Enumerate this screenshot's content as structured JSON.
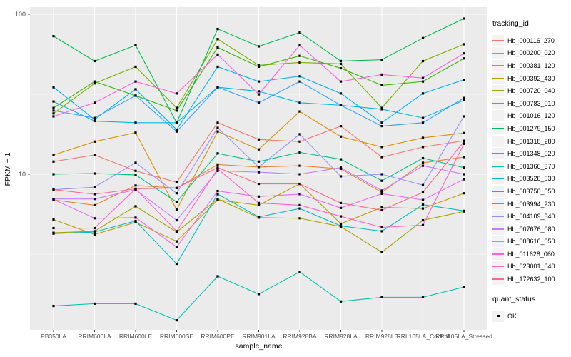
{
  "figure": {
    "background": "#FFFFFF",
    "panel_background": "#EBEBEB",
    "grid_color": "#FFFFFF",
    "tick_color": "#333333",
    "tick_label_color": "#4D4D4D",
    "title_color": "#000000",
    "marker_color": "#000000"
  },
  "chart_data": {
    "type": "line",
    "title": "",
    "xlabel": "sample_name",
    "ylabel": "FPKM + 1",
    "y_scale": "log10",
    "ylim": [
      1.05,
      110
    ],
    "grid": true,
    "legend_position": "right",
    "legend_title": "tracking_id",
    "quant_legend": {
      "title": "quant_status",
      "items": [
        {
          "label": "OK",
          "marker": "black-square"
        }
      ]
    },
    "y_major_ticks": [
      {
        "label": "100",
        "value": 100
      },
      {
        "label": "10",
        "value": 10
      }
    ],
    "y_minor_ticks": [
      31.62,
      3.162
    ],
    "categories": [
      "PB350LA",
      "RRIM600LA",
      "RRIM600LE",
      "RRIM600SE",
      "RRIM600PE",
      "RRIM901LA",
      "RRIM928BA",
      "RRIM928LA",
      "RRIM928LE",
      "RRII105LA_Control",
      "RRII105LA_Stressed"
    ],
    "series": [
      {
        "name": "Hb_000116_270",
        "color": "#F8766D",
        "values": [
          12,
          13.2,
          10.5,
          8.9,
          21,
          16.5,
          16,
          20,
          12.8,
          14.8,
          16.2
        ]
      },
      {
        "name": "Hb_000200_020",
        "color": "#EA8331",
        "values": [
          6.9,
          6.4,
          8.5,
          8.2,
          11.5,
          11.1,
          11.3,
          10.8,
          7.7,
          11.8,
          12.8
        ]
      },
      {
        "name": "Hb_000381_120",
        "color": "#D89000",
        "values": [
          13.2,
          16,
          18.2,
          6,
          18.5,
          14.3,
          24.7,
          17.2,
          14.8,
          16.9,
          18.1
        ]
      },
      {
        "name": "Hb_000392_430",
        "color": "#C09B00",
        "values": [
          5.2,
          4.2,
          5,
          3.8,
          6.9,
          6.4,
          8.7,
          4.9,
          6.2,
          6.1,
          7.6
        ]
      },
      {
        "name": "Hb_000720_040",
        "color": "#A3A500",
        "values": [
          4.3,
          4.4,
          6.3,
          4.35,
          7,
          5.35,
          5.3,
          4.7,
          3.25,
          5.15,
          5.85
        ]
      },
      {
        "name": "Hb_000783_010",
        "color": "#7CAE00",
        "values": [
          24,
          37,
          47,
          26,
          70,
          48,
          50,
          49,
          26,
          51,
          65
        ]
      },
      {
        "name": "Hb_001016_120",
        "color": "#39B600",
        "values": [
          26,
          38,
          31,
          25,
          62,
          47,
          55,
          46,
          36,
          38,
          53
        ]
      },
      {
        "name": "Hb_001279_150",
        "color": "#00BB4E",
        "values": [
          73,
          51,
          64,
          21,
          81,
          63,
          77,
          51,
          52,
          71,
          94
        ]
      },
      {
        "name": "Hb_001318_280",
        "color": "#00C087",
        "values": [
          10,
          10.1,
          9.9,
          6.7,
          13.5,
          12,
          13.7,
          12.4,
          9.1,
          12.6,
          11
        ]
      },
      {
        "name": "Hb_001348_020",
        "color": "#00C1A9",
        "values": [
          1.5,
          1.55,
          1.55,
          1.22,
          2.3,
          1.78,
          2.45,
          1.6,
          1.7,
          1.7,
          1.97
        ]
      },
      {
        "name": "Hb_001366_370",
        "color": "#00BFC4",
        "values": [
          4.25,
          4.35,
          5.1,
          2.75,
          7.5,
          5.4,
          6.1,
          4.75,
          4.4,
          6.45,
          5.9
        ]
      },
      {
        "name": "Hb_003528_030",
        "color": "#00BAE0",
        "values": [
          28.5,
          21.5,
          21,
          21,
          35,
          33,
          28,
          27,
          25.5,
          22.5,
          29
        ]
      },
      {
        "name": "Hb_003750_050",
        "color": "#00B0F6",
        "values": [
          35,
          22,
          34,
          19,
          47,
          38,
          41,
          32,
          21,
          32,
          39
        ]
      },
      {
        "name": "Hb_003994_230",
        "color": "#35A2FF",
        "values": [
          25,
          22.5,
          31,
          18.5,
          35,
          28,
          38,
          27,
          20,
          21,
          30
        ]
      },
      {
        "name": "Hb_004109_340",
        "color": "#9590FF",
        "values": [
          8,
          8.3,
          11.8,
          7.6,
          19.5,
          11.1,
          17.8,
          9.7,
          10,
          8.55,
          23
        ]
      },
      {
        "name": "Hb_007676_080",
        "color": "#C77CFF",
        "values": [
          7,
          7,
          8,
          5.15,
          10.5,
          10.3,
          10,
          11,
          7.9,
          11.3,
          10
        ]
      },
      {
        "name": "Hb_008616_050",
        "color": "#E76BF3",
        "values": [
          6.95,
          5.3,
          5.35,
          3.5,
          7.85,
          7.25,
          7.5,
          6.15,
          7.55,
          6.9,
          9.3
        ]
      },
      {
        "name": "Hb_011628_060",
        "color": "#FA62DB",
        "values": [
          23,
          28,
          38,
          32,
          56,
          31.6,
          64,
          38,
          42,
          40,
          57
        ]
      },
      {
        "name": "Hb_023001_040",
        "color": "#FF61C9",
        "values": [
          4.6,
          4.6,
          8.1,
          4.4,
          10.8,
          6.6,
          6.4,
          5.45,
          4.65,
          4.8,
          15.5
        ]
      },
      {
        "name": "Hb_172632_100",
        "color": "#FF6690",
        "values": [
          8,
          7.5,
          8.1,
          8.2,
          11,
          8.7,
          8.7,
          6.6,
          5.95,
          7.7,
          16
        ]
      }
    ]
  }
}
